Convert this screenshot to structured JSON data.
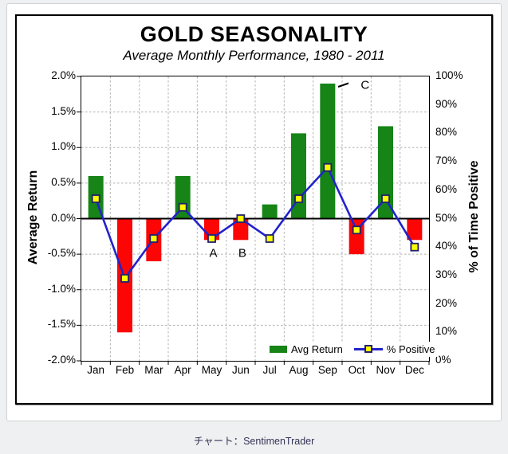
{
  "caption": "チャート：SentimenTrader",
  "chart_data": {
    "type": "bar+line combo",
    "title": "GOLD SEASONALITY",
    "subtitle": "Average Monthly Performance, 1980 - 2011",
    "categories": [
      "Jan",
      "Feb",
      "Mar",
      "Apr",
      "May",
      "Jun",
      "Jul",
      "Aug",
      "Sep",
      "Oct",
      "Nov",
      "Dec"
    ],
    "series": [
      {
        "name": "Avg Return",
        "type": "bar",
        "axis": "left",
        "unit": "%",
        "values": [
          0.6,
          -1.6,
          -0.6,
          0.6,
          -0.3,
          -0.3,
          0.2,
          1.2,
          1.9,
          -0.5,
          1.3,
          -0.3
        ],
        "positive_color": "#168416",
        "negative_color": "#fb0505"
      },
      {
        "name": "% Positive",
        "type": "line",
        "axis": "right",
        "unit": "%",
        "values": [
          57,
          29,
          43,
          54,
          43,
          50,
          43,
          57,
          68,
          46,
          57,
          40
        ],
        "line_color": "#2222cc",
        "marker_fill": "#ffff00",
        "marker_border": "#202070"
      }
    ],
    "left_axis": {
      "label": "Average Return",
      "min": -2.0,
      "max": 2.0,
      "step": 0.5,
      "tick_labels": [
        "2.0%",
        "1.5%",
        "1.0%",
        "0.5%",
        "0.0%",
        "-0.5%",
        "-1.0%",
        "-1.5%",
        "-2.0%"
      ]
    },
    "right_axis": {
      "label": "% of Time Positive",
      "min": 0,
      "max": 100,
      "step": 10,
      "tick_labels": [
        "100%",
        "90%",
        "80%",
        "70%",
        "60%",
        "50%",
        "40%",
        "30%",
        "20%",
        "10%",
        "0%"
      ]
    },
    "annotations": [
      {
        "text": "A",
        "month": "May"
      },
      {
        "text": "B",
        "month": "Jun"
      },
      {
        "text": "C",
        "month": "Sep"
      }
    ],
    "grid": true,
    "legend_position": "inside-bottom-right",
    "gridline_color": "#b0b0b0",
    "zero_line_color": "#000000"
  }
}
